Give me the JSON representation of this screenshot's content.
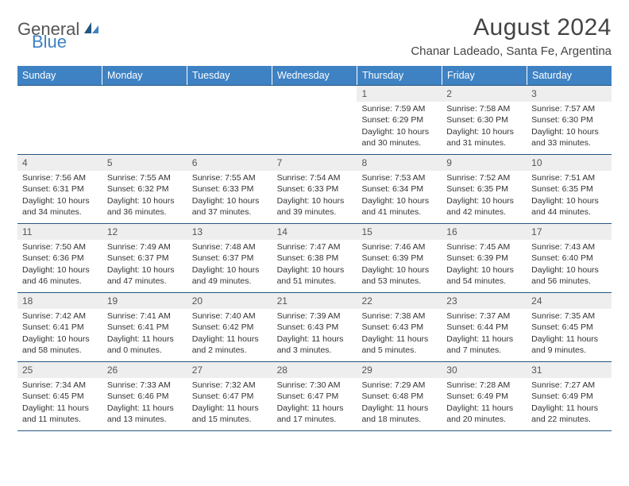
{
  "brand": {
    "text1": "General",
    "text2": "Blue",
    "accent_color": "#3e82c4"
  },
  "title": "August 2024",
  "location": "Chanar Ladeado, Santa Fe, Argentina",
  "colors": {
    "header_bg": "#3e82c4",
    "header_text": "#ffffff",
    "row_border": "#26557f",
    "daynum_bg": "#eeeeee",
    "text": "#333333",
    "background": "#ffffff"
  },
  "weekdays": [
    "Sunday",
    "Monday",
    "Tuesday",
    "Wednesday",
    "Thursday",
    "Friday",
    "Saturday"
  ],
  "weeks": [
    [
      {
        "n": "",
        "sr": "",
        "ss": "",
        "dl": ""
      },
      {
        "n": "",
        "sr": "",
        "ss": "",
        "dl": ""
      },
      {
        "n": "",
        "sr": "",
        "ss": "",
        "dl": ""
      },
      {
        "n": "",
        "sr": "",
        "ss": "",
        "dl": ""
      },
      {
        "n": "1",
        "sr": "Sunrise: 7:59 AM",
        "ss": "Sunset: 6:29 PM",
        "dl": "Daylight: 10 hours and 30 minutes."
      },
      {
        "n": "2",
        "sr": "Sunrise: 7:58 AM",
        "ss": "Sunset: 6:30 PM",
        "dl": "Daylight: 10 hours and 31 minutes."
      },
      {
        "n": "3",
        "sr": "Sunrise: 7:57 AM",
        "ss": "Sunset: 6:30 PM",
        "dl": "Daylight: 10 hours and 33 minutes."
      }
    ],
    [
      {
        "n": "4",
        "sr": "Sunrise: 7:56 AM",
        "ss": "Sunset: 6:31 PM",
        "dl": "Daylight: 10 hours and 34 minutes."
      },
      {
        "n": "5",
        "sr": "Sunrise: 7:55 AM",
        "ss": "Sunset: 6:32 PM",
        "dl": "Daylight: 10 hours and 36 minutes."
      },
      {
        "n": "6",
        "sr": "Sunrise: 7:55 AM",
        "ss": "Sunset: 6:33 PM",
        "dl": "Daylight: 10 hours and 37 minutes."
      },
      {
        "n": "7",
        "sr": "Sunrise: 7:54 AM",
        "ss": "Sunset: 6:33 PM",
        "dl": "Daylight: 10 hours and 39 minutes."
      },
      {
        "n": "8",
        "sr": "Sunrise: 7:53 AM",
        "ss": "Sunset: 6:34 PM",
        "dl": "Daylight: 10 hours and 41 minutes."
      },
      {
        "n": "9",
        "sr": "Sunrise: 7:52 AM",
        "ss": "Sunset: 6:35 PM",
        "dl": "Daylight: 10 hours and 42 minutes."
      },
      {
        "n": "10",
        "sr": "Sunrise: 7:51 AM",
        "ss": "Sunset: 6:35 PM",
        "dl": "Daylight: 10 hours and 44 minutes."
      }
    ],
    [
      {
        "n": "11",
        "sr": "Sunrise: 7:50 AM",
        "ss": "Sunset: 6:36 PM",
        "dl": "Daylight: 10 hours and 46 minutes."
      },
      {
        "n": "12",
        "sr": "Sunrise: 7:49 AM",
        "ss": "Sunset: 6:37 PM",
        "dl": "Daylight: 10 hours and 47 minutes."
      },
      {
        "n": "13",
        "sr": "Sunrise: 7:48 AM",
        "ss": "Sunset: 6:37 PM",
        "dl": "Daylight: 10 hours and 49 minutes."
      },
      {
        "n": "14",
        "sr": "Sunrise: 7:47 AM",
        "ss": "Sunset: 6:38 PM",
        "dl": "Daylight: 10 hours and 51 minutes."
      },
      {
        "n": "15",
        "sr": "Sunrise: 7:46 AM",
        "ss": "Sunset: 6:39 PM",
        "dl": "Daylight: 10 hours and 53 minutes."
      },
      {
        "n": "16",
        "sr": "Sunrise: 7:45 AM",
        "ss": "Sunset: 6:39 PM",
        "dl": "Daylight: 10 hours and 54 minutes."
      },
      {
        "n": "17",
        "sr": "Sunrise: 7:43 AM",
        "ss": "Sunset: 6:40 PM",
        "dl": "Daylight: 10 hours and 56 minutes."
      }
    ],
    [
      {
        "n": "18",
        "sr": "Sunrise: 7:42 AM",
        "ss": "Sunset: 6:41 PM",
        "dl": "Daylight: 10 hours and 58 minutes."
      },
      {
        "n": "19",
        "sr": "Sunrise: 7:41 AM",
        "ss": "Sunset: 6:41 PM",
        "dl": "Daylight: 11 hours and 0 minutes."
      },
      {
        "n": "20",
        "sr": "Sunrise: 7:40 AM",
        "ss": "Sunset: 6:42 PM",
        "dl": "Daylight: 11 hours and 2 minutes."
      },
      {
        "n": "21",
        "sr": "Sunrise: 7:39 AM",
        "ss": "Sunset: 6:43 PM",
        "dl": "Daylight: 11 hours and 3 minutes."
      },
      {
        "n": "22",
        "sr": "Sunrise: 7:38 AM",
        "ss": "Sunset: 6:43 PM",
        "dl": "Daylight: 11 hours and 5 minutes."
      },
      {
        "n": "23",
        "sr": "Sunrise: 7:37 AM",
        "ss": "Sunset: 6:44 PM",
        "dl": "Daylight: 11 hours and 7 minutes."
      },
      {
        "n": "24",
        "sr": "Sunrise: 7:35 AM",
        "ss": "Sunset: 6:45 PM",
        "dl": "Daylight: 11 hours and 9 minutes."
      }
    ],
    [
      {
        "n": "25",
        "sr": "Sunrise: 7:34 AM",
        "ss": "Sunset: 6:45 PM",
        "dl": "Daylight: 11 hours and 11 minutes."
      },
      {
        "n": "26",
        "sr": "Sunrise: 7:33 AM",
        "ss": "Sunset: 6:46 PM",
        "dl": "Daylight: 11 hours and 13 minutes."
      },
      {
        "n": "27",
        "sr": "Sunrise: 7:32 AM",
        "ss": "Sunset: 6:47 PM",
        "dl": "Daylight: 11 hours and 15 minutes."
      },
      {
        "n": "28",
        "sr": "Sunrise: 7:30 AM",
        "ss": "Sunset: 6:47 PM",
        "dl": "Daylight: 11 hours and 17 minutes."
      },
      {
        "n": "29",
        "sr": "Sunrise: 7:29 AM",
        "ss": "Sunset: 6:48 PM",
        "dl": "Daylight: 11 hours and 18 minutes."
      },
      {
        "n": "30",
        "sr": "Sunrise: 7:28 AM",
        "ss": "Sunset: 6:49 PM",
        "dl": "Daylight: 11 hours and 20 minutes."
      },
      {
        "n": "31",
        "sr": "Sunrise: 7:27 AM",
        "ss": "Sunset: 6:49 PM",
        "dl": "Daylight: 11 hours and 22 minutes."
      }
    ]
  ]
}
